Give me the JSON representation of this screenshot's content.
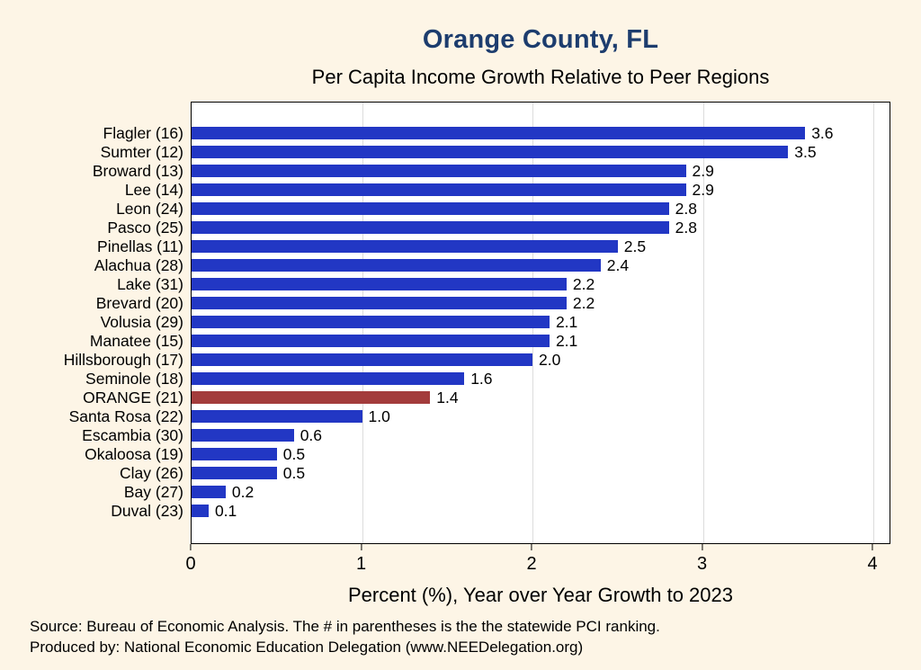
{
  "header": {
    "title": "Orange County, FL",
    "subtitle": "Per Capita Income Growth Relative to Peer Regions"
  },
  "axis": {
    "xlabel": "Percent (%), Year over Year Growth to 2023"
  },
  "footer": {
    "line1": "Source: Bureau of Economic Analysis. The # in parentheses is the the statewide PCI ranking.",
    "line2": "Produced by: National Economic Education Delegation (www.NEEDelegation.org)"
  },
  "colors": {
    "title_navy": "#1d3d6e",
    "bar_blue": "#2237c4",
    "highlight_red": "#a33c3c",
    "background_cream": "#fdf5e6",
    "plot_white": "#ffffff"
  },
  "chart_data": {
    "type": "bar",
    "orientation": "horizontal",
    "title": "Orange County, FL",
    "subtitle": "Per Capita Income Growth Relative to Peer Regions",
    "xlabel": "Percent (%), Year over Year Growth to 2023",
    "xlim": [
      0,
      4
    ],
    "xticks": [
      0,
      1,
      2,
      3,
      4
    ],
    "grid": true,
    "legend": "none",
    "categories": [
      "Flagler (16)",
      "Sumter (12)",
      "Broward (13)",
      "Lee (14)",
      "Leon (24)",
      "Pasco (25)",
      "Pinellas (11)",
      "Alachua (28)",
      "Lake (31)",
      "Brevard (20)",
      "Volusia (29)",
      "Manatee (15)",
      "Hillsborough (17)",
      "Seminole (18)",
      "ORANGE (21)",
      "Santa Rosa (22)",
      "Escambia (30)",
      "Okaloosa (19)",
      "Clay (26)",
      "Bay (27)",
      "Duval (23)"
    ],
    "values": [
      3.6,
      3.5,
      2.9,
      2.9,
      2.8,
      2.8,
      2.5,
      2.4,
      2.2,
      2.2,
      2.1,
      2.1,
      2.0,
      1.6,
      1.4,
      1.0,
      0.6,
      0.5,
      0.5,
      0.2,
      0.1
    ],
    "value_labels": [
      "3.6",
      "3.5",
      "2.9",
      "2.9",
      "2.8",
      "2.8",
      "2.5",
      "2.4",
      "2.2",
      "2.2",
      "2.1",
      "2.1",
      "2.0",
      "1.6",
      "1.4",
      "1.0",
      "0.6",
      "0.5",
      "0.5",
      "0.2",
      "0.1"
    ],
    "highlight_category": "ORANGE (21)",
    "highlight_index": 14,
    "bar_color": "#2237c4",
    "highlight_color": "#a33c3c"
  }
}
